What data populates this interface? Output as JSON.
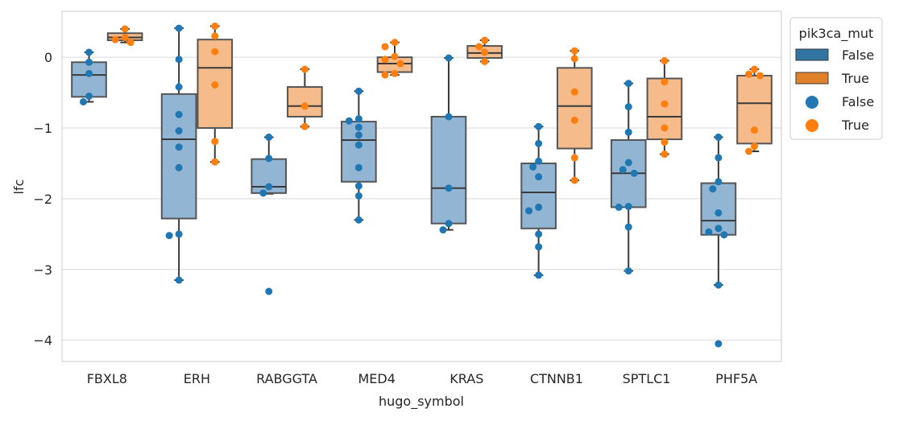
{
  "chart_data": {
    "type": "box",
    "xlabel": "hugo_symbol",
    "ylabel": "lfc",
    "ylim": [
      -4.3,
      0.65
    ],
    "yticks": [
      0,
      -1,
      -2,
      -3,
      -4
    ],
    "ytick_labels": [
      "0",
      "−1",
      "−2",
      "−3",
      "−4"
    ],
    "grid": true,
    "categories": [
      "FBXL8",
      "ERH",
      "RABGGTA",
      "MED4",
      "KRAS",
      "CTNNB1",
      "SPTLC1",
      "PHF5A"
    ],
    "legend": {
      "title": "pik3ca_mut",
      "position": "top-right-outside",
      "box_entries": [
        "False",
        "True"
      ],
      "point_entries": [
        "False",
        "True"
      ]
    },
    "colors": {
      "False": "#1f77b4",
      "True": "#ff7f0e",
      "box_False": "#92b5d3",
      "box_True": "#f5bb8a",
      "grid": "#d9d9d9",
      "median": "#3a3a3a"
    },
    "series": [
      {
        "group": "False",
        "boxes": [
          {
            "category": "FBXL8",
            "whisker_low": -0.63,
            "q1": -0.56,
            "median": -0.25,
            "q3": -0.07,
            "whisker_high": 0.07
          },
          {
            "category": "ERH",
            "whisker_low": -3.15,
            "q1": -2.28,
            "median": -1.16,
            "q3": -0.52,
            "whisker_high": 0.41
          },
          {
            "category": "RABGGTA",
            "whisker_low": -1.93,
            "q1": -1.92,
            "median": -1.83,
            "q3": -1.44,
            "whisker_high": -1.13
          },
          {
            "category": "MED4",
            "whisker_low": -2.3,
            "q1": -1.76,
            "median": -1.17,
            "q3": -0.91,
            "whisker_high": -0.48
          },
          {
            "category": "KRAS",
            "whisker_low": -2.44,
            "q1": -2.35,
            "median": -1.85,
            "q3": -0.84,
            "whisker_high": -0.01
          },
          {
            "category": "CTNNB1",
            "whisker_low": -3.08,
            "q1": -2.42,
            "median": -1.91,
            "q3": -1.5,
            "whisker_high": -0.98
          },
          {
            "category": "SPTLC1",
            "whisker_low": -3.02,
            "q1": -2.12,
            "median": -1.64,
            "q3": -1.17,
            "whisker_high": -0.37
          },
          {
            "category": "PHF5A",
            "whisker_low": -3.22,
            "q1": -2.51,
            "median": -2.31,
            "q3": -1.78,
            "whisker_high": -1.13
          }
        ],
        "points": [
          {
            "category": "FBXL8",
            "values": [
              0.07,
              -0.07,
              -0.23,
              -0.55,
              -0.63
            ]
          },
          {
            "category": "ERH",
            "values": [
              0.41,
              -0.03,
              -0.42,
              -0.81,
              -1.04,
              -1.27,
              -1.56,
              -2.5,
              -2.52,
              -3.15
            ]
          },
          {
            "category": "RABGGTA",
            "values": [
              -1.13,
              -1.43,
              -1.83,
              -1.92,
              -3.31
            ]
          },
          {
            "category": "MED4",
            "values": [
              -0.48,
              -0.87,
              -0.9,
              -0.99,
              -1.1,
              -1.24,
              -1.56,
              -1.82,
              -1.96,
              -2.3
            ]
          },
          {
            "category": "KRAS",
            "values": [
              -0.01,
              -0.84,
              -1.85,
              -2.35,
              -2.44
            ]
          },
          {
            "category": "CTNNB1",
            "values": [
              -0.98,
              -1.22,
              -1.47,
              -1.55,
              -1.69,
              -2.12,
              -2.17,
              -2.5,
              -2.68,
              -3.08
            ]
          },
          {
            "category": "SPTLC1",
            "values": [
              -0.37,
              -0.7,
              -1.06,
              -1.49,
              -1.59,
              -1.64,
              -2.11,
              -2.12,
              -2.4,
              -3.02
            ]
          },
          {
            "category": "PHF5A",
            "values": [
              -1.13,
              -1.42,
              -1.76,
              -1.86,
              -2.2,
              -2.42,
              -2.47,
              -2.51,
              -3.22,
              -4.05
            ]
          }
        ]
      },
      {
        "group": "True",
        "boxes": [
          {
            "category": "FBXL8",
            "whisker_low": 0.21,
            "q1": 0.24,
            "median": 0.28,
            "q3": 0.34,
            "whisker_high": 0.4
          },
          {
            "category": "ERH",
            "whisker_low": -1.48,
            "q1": -1.0,
            "median": -0.15,
            "q3": 0.25,
            "whisker_high": 0.44
          },
          {
            "category": "RABGGTA",
            "whisker_low": -0.98,
            "q1": -0.84,
            "median": -0.69,
            "q3": -0.42,
            "whisker_high": -0.17
          },
          {
            "category": "MED4",
            "whisker_low": -0.25,
            "q1": -0.21,
            "median": -0.09,
            "q3": 0.0,
            "whisker_high": 0.21
          },
          {
            "category": "KRAS",
            "whisker_low": -0.06,
            "q1": -0.01,
            "median": 0.06,
            "q3": 0.16,
            "whisker_high": 0.24
          },
          {
            "category": "CTNNB1",
            "whisker_low": -1.74,
            "q1": -1.29,
            "median": -0.69,
            "q3": -0.15,
            "whisker_high": 0.09
          },
          {
            "category": "SPTLC1",
            "whisker_low": -1.37,
            "q1": -1.16,
            "median": -0.84,
            "q3": -0.3,
            "whisker_high": -0.05
          },
          {
            "category": "PHF5A",
            "whisker_low": -1.33,
            "q1": -1.22,
            "median": -0.65,
            "q3": -0.26,
            "whisker_high": -0.17
          }
        ],
        "points": [
          {
            "category": "FBXL8",
            "values": [
              0.4,
              0.28,
              0.25,
              0.21
            ]
          },
          {
            "category": "ERH",
            "values": [
              0.44,
              0.3,
              0.08,
              -0.39,
              -1.19,
              -1.48
            ]
          },
          {
            "category": "RABGGTA",
            "values": [
              -0.17,
              -0.69,
              -0.98
            ]
          },
          {
            "category": "MED4",
            "values": [
              0.21,
              0.15,
              0.01,
              -0.03,
              -0.09,
              -0.23,
              -0.25
            ]
          },
          {
            "category": "KRAS",
            "values": [
              0.24,
              0.15,
              0.07,
              -0.06
            ]
          },
          {
            "category": "CTNNB1",
            "values": [
              0.09,
              -0.02,
              -0.49,
              -0.89,
              -1.42,
              -1.74
            ]
          },
          {
            "category": "SPTLC1",
            "values": [
              -0.05,
              -0.35,
              -0.66,
              -1.0,
              -1.2,
              -1.37
            ]
          },
          {
            "category": "PHF5A",
            "values": [
              -0.17,
              -0.24,
              -0.26,
              -1.03,
              -1.26,
              -1.33
            ]
          }
        ]
      }
    ]
  }
}
